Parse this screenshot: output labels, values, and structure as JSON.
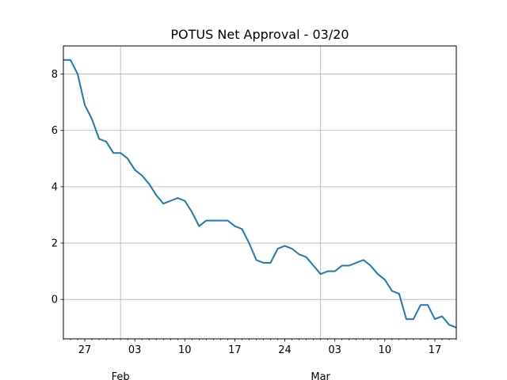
{
  "chart_data": {
    "type": "line",
    "title": "POTUS Net Approval - 03/20",
    "xlabel": "",
    "ylabel": "",
    "x": [
      "2025-01-24",
      "2025-01-25",
      "2025-01-26",
      "2025-01-27",
      "2025-01-28",
      "2025-01-29",
      "2025-01-30",
      "2025-01-31",
      "2025-02-01",
      "2025-02-02",
      "2025-02-03",
      "2025-02-04",
      "2025-02-05",
      "2025-02-06",
      "2025-02-07",
      "2025-02-08",
      "2025-02-09",
      "2025-02-10",
      "2025-02-11",
      "2025-02-12",
      "2025-02-13",
      "2025-02-14",
      "2025-02-15",
      "2025-02-16",
      "2025-02-17",
      "2025-02-18",
      "2025-02-19",
      "2025-02-20",
      "2025-02-21",
      "2025-02-22",
      "2025-02-23",
      "2025-02-24",
      "2025-02-25",
      "2025-02-26",
      "2025-02-27",
      "2025-02-28",
      "2025-03-01",
      "2025-03-02",
      "2025-03-03",
      "2025-03-04",
      "2025-03-05",
      "2025-03-06",
      "2025-03-07",
      "2025-03-08",
      "2025-03-09",
      "2025-03-10",
      "2025-03-11",
      "2025-03-12",
      "2025-03-13",
      "2025-03-14",
      "2025-03-15",
      "2025-03-16",
      "2025-03-17",
      "2025-03-18",
      "2025-03-19",
      "2025-03-20"
    ],
    "series": [
      {
        "values": [
          8.5,
          8.5,
          8.0,
          6.9,
          6.4,
          5.7,
          5.6,
          5.2,
          5.2,
          5.0,
          4.6,
          4.4,
          4.1,
          3.7,
          3.4,
          3.5,
          3.6,
          3.5,
          3.1,
          2.6,
          2.8,
          2.8,
          2.8,
          2.8,
          2.6,
          2.5,
          2.0,
          1.4,
          1.3,
          1.3,
          1.8,
          1.9,
          1.8,
          1.6,
          1.5,
          1.2,
          0.9,
          1.0,
          1.0,
          1.2,
          1.2,
          1.3,
          1.4,
          1.2,
          0.9,
          0.7,
          0.3,
          0.2,
          -0.7,
          -0.7,
          -0.2,
          -0.2,
          -0.7,
          -0.6,
          -0.9,
          -1.0
        ],
        "color": "#1f77b4"
      }
    ],
    "xlim": [
      "2025-01-24",
      "2025-03-20"
    ],
    "ylim": [
      -1.4,
      9.0
    ],
    "yticks": [
      0,
      2,
      4,
      6,
      8
    ],
    "xticks_minor": [
      {
        "date": "2025-01-27",
        "label": "27"
      },
      {
        "date": "2025-02-03",
        "label": "03"
      },
      {
        "date": "2025-02-10",
        "label": "10"
      },
      {
        "date": "2025-02-17",
        "label": "17"
      },
      {
        "date": "2025-02-24",
        "label": "24"
      },
      {
        "date": "2025-03-03",
        "label": "03"
      },
      {
        "date": "2025-03-10",
        "label": "10"
      },
      {
        "date": "2025-03-17",
        "label": "17"
      }
    ],
    "xticks_major": [
      {
        "date": "2025-02-01",
        "label": "Feb"
      },
      {
        "date": "2025-03-01",
        "label": "Mar"
      }
    ],
    "grid": true,
    "legend": "none"
  }
}
